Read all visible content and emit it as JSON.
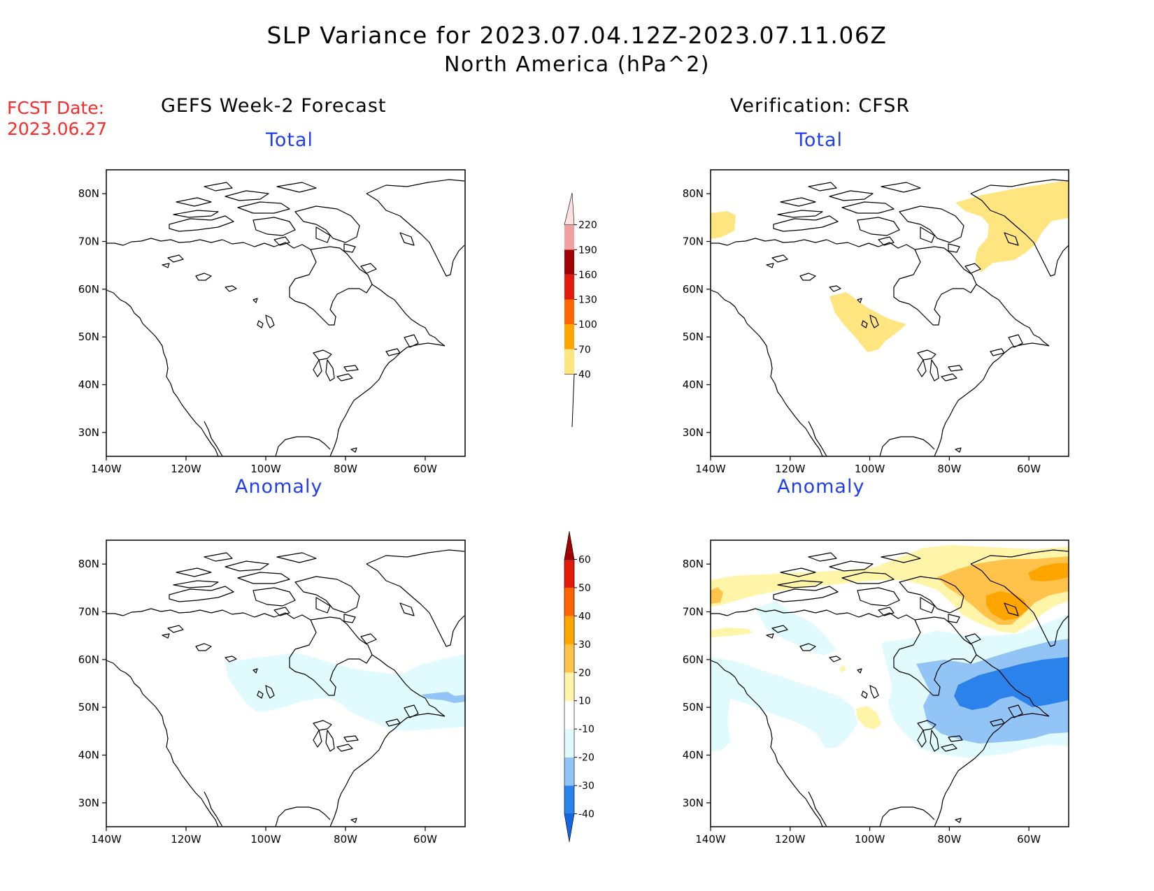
{
  "title_line1": "SLP Variance for 2023.07.04.12Z-2023.07.11.06Z",
  "title_line2": "North America (hPa^2)",
  "fcst_date": {
    "label": "FCST Date:",
    "value": "2023.06.27"
  },
  "columns": {
    "left": "GEFS Week-2 Forecast",
    "right": "Verification: CFSR"
  },
  "panels": [
    {
      "id": "fcst-total",
      "subtitle": "Total"
    },
    {
      "id": "verif-total",
      "subtitle": "Total"
    },
    {
      "id": "fcst-anomaly",
      "subtitle": "Anomaly"
    },
    {
      "id": "verif-anomaly",
      "subtitle": "Anomaly"
    }
  ],
  "axes": {
    "lon_labels": [
      "140W",
      "120W",
      "100W",
      "80W",
      "60W"
    ],
    "lon_values": [
      -140,
      -120,
      -100,
      -80,
      -60
    ],
    "lat_labels": [
      "30N",
      "40N",
      "50N",
      "60N",
      "70N",
      "80N"
    ],
    "lat_values": [
      30,
      40,
      50,
      60,
      70,
      80
    ],
    "lon_range": [
      -140,
      -50
    ],
    "lat_range": [
      25,
      85
    ]
  },
  "colorbar_total": {
    "labels": [
      "40",
      "70",
      "100",
      "130",
      "160",
      "190",
      "220"
    ],
    "colors": [
      "#ffe57f",
      "#ffa500",
      "#ff6600",
      "#e31a0b",
      "#a00000",
      "#f0a0a0",
      "#fde0e0"
    ]
  },
  "colorbar_anomaly": {
    "labels": [
      "-40",
      "-30",
      "-20",
      "-10",
      "10",
      "20",
      "30",
      "40",
      "50",
      "60"
    ],
    "colors": [
      "#1764e0",
      "#2a82ea",
      "#92c4f5",
      "#e0fafe",
      "#ffffff",
      "#fff5a8",
      "#ffc24a",
      "#ffa500",
      "#ff6600",
      "#e31a0b",
      "#a00000"
    ]
  }
}
